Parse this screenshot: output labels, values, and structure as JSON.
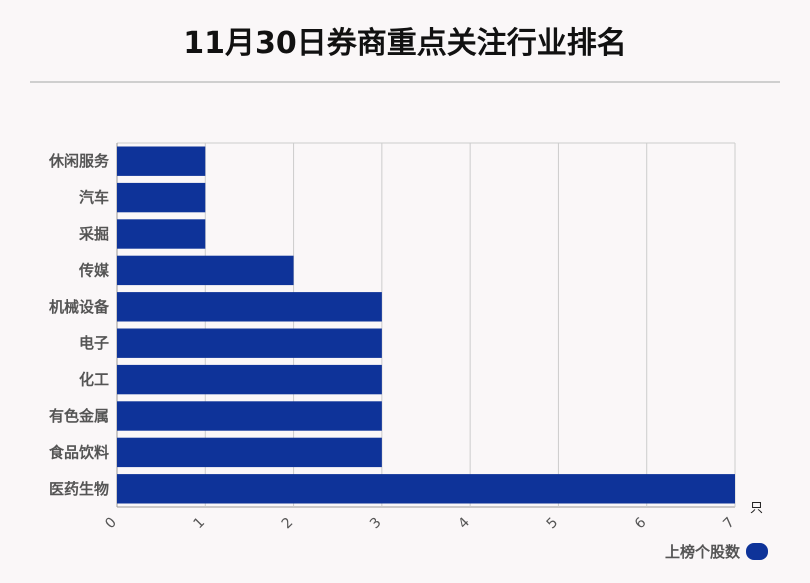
{
  "title": "11月30日券商重点关注行业排名",
  "chart_data": {
    "type": "bar",
    "orientation": "horizontal",
    "title": "11月30日券商重点关注行业排名",
    "categories": [
      "休闲服务",
      "汽车",
      "采掘",
      "传媒",
      "机械设备",
      "电子",
      "化工",
      "有色金属",
      "食品饮料",
      "医药生物"
    ],
    "series": [
      {
        "name": "上榜个股数",
        "values": [
          1,
          1,
          1,
          2,
          3,
          3,
          3,
          3,
          3,
          7
        ]
      }
    ],
    "xlim": [
      0,
      7
    ],
    "xticks": [
      "0",
      "1",
      "2",
      "3",
      "4",
      "5",
      "6",
      "7"
    ],
    "xunit": "只",
    "grid": true,
    "legend_position": "bottom-right",
    "bar_color": "#0e3399"
  }
}
